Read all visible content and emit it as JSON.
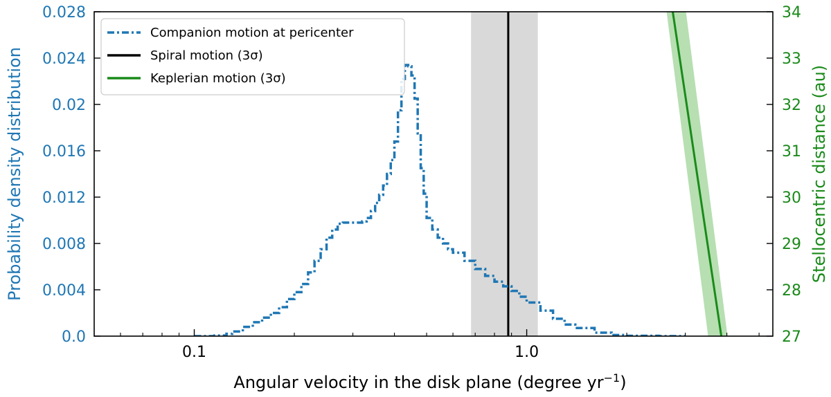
{
  "chart_data": {
    "type": "line",
    "xlabel": "Angular velocity in the disk plane (degree yr",
    "xlabel_sup": "−1",
    "xlabel_end": ")",
    "ylabel_left": "Probability density distribution",
    "ylabel_right": "Stellocentric distance (au)",
    "x_scale": "log",
    "xlim": [
      0.05,
      5.5
    ],
    "ylim_left": [
      0.0,
      0.028
    ],
    "ylim_right": [
      27,
      34
    ],
    "x_ticks": [
      0.1,
      1.0
    ],
    "x_tick_labels": [
      "0.1",
      "1.0"
    ],
    "left_ticks": [
      0.0,
      0.004,
      0.008,
      0.012,
      0.016,
      0.02,
      0.024,
      0.028
    ],
    "left_tick_labels": [
      "0.0",
      "0.004",
      "0.008",
      "0.012",
      "0.016",
      "0.02",
      "0.024",
      "0.028"
    ],
    "right_ticks": [
      27,
      28,
      29,
      30,
      31,
      32,
      33,
      34
    ],
    "right_tick_labels": [
      "27",
      "28",
      "29",
      "30",
      "31",
      "32",
      "33",
      "34"
    ],
    "colors": {
      "companion": "#1f77b4",
      "spiral": "#000000",
      "spiral_band": "#d9d9d9",
      "keplerian": "#1a8a1a",
      "keplerian_band": "#b7dfb2",
      "left_axis": "#1f77b4",
      "right_axis": "#1a8a1a"
    },
    "legend": {
      "position": "top-left",
      "entries": [
        "Companion motion at pericenter",
        "Spiral motion (3σ)",
        "Keplerian motion (3σ)"
      ]
    },
    "series": [
      {
        "name": "Companion motion at pericenter",
        "style": "dash-dot step",
        "axis": "left",
        "x": [
          0.1,
          0.115,
          0.125,
          0.13,
          0.14,
          0.15,
          0.16,
          0.17,
          0.18,
          0.19,
          0.2,
          0.21,
          0.22,
          0.23,
          0.24,
          0.25,
          0.26,
          0.27,
          0.28,
          0.29,
          0.3,
          0.31,
          0.32,
          0.33,
          0.34,
          0.35,
          0.36,
          0.37,
          0.38,
          0.39,
          0.4,
          0.41,
          0.42,
          0.43,
          0.44,
          0.45,
          0.46,
          0.47,
          0.48,
          0.49,
          0.5,
          0.52,
          0.54,
          0.56,
          0.58,
          0.6,
          0.65,
          0.7,
          0.75,
          0.8,
          0.85,
          0.9,
          0.95,
          1.0,
          1.1,
          1.2,
          1.3,
          1.4,
          1.6,
          1.8,
          2.0,
          2.5,
          3.0
        ],
        "y": [
          0.0,
          5e-05,
          0.0002,
          0.0004,
          0.0008,
          0.0012,
          0.0016,
          0.002,
          0.0025,
          0.0032,
          0.0038,
          0.0045,
          0.0055,
          0.0065,
          0.0075,
          0.0085,
          0.0092,
          0.0097,
          0.0098,
          0.0098,
          0.0098,
          0.0098,
          0.0099,
          0.0102,
          0.0108,
          0.0115,
          0.0122,
          0.013,
          0.014,
          0.0152,
          0.0168,
          0.0195,
          0.0222,
          0.0234,
          0.0233,
          0.0225,
          0.0205,
          0.0175,
          0.0145,
          0.0123,
          0.0102,
          0.0092,
          0.0085,
          0.008,
          0.0075,
          0.0072,
          0.0065,
          0.0058,
          0.0052,
          0.0047,
          0.0043,
          0.0039,
          0.0034,
          0.0029,
          0.0022,
          0.0015,
          0.001,
          0.0007,
          0.0003,
          0.0001,
          3e-05,
          0.0,
          0.0
        ]
      },
      {
        "name": "Spiral motion (3σ)",
        "style": "vertical line with band",
        "x": 0.88,
        "band": [
          0.68,
          1.08
        ]
      },
      {
        "name": "Keplerian motion (3σ)",
        "style": "line with band",
        "axis": "right",
        "x": [
          2.75,
          3.85
        ],
        "y": [
          34.0,
          27.0
        ],
        "band_half_width": 0.12
      }
    ]
  }
}
